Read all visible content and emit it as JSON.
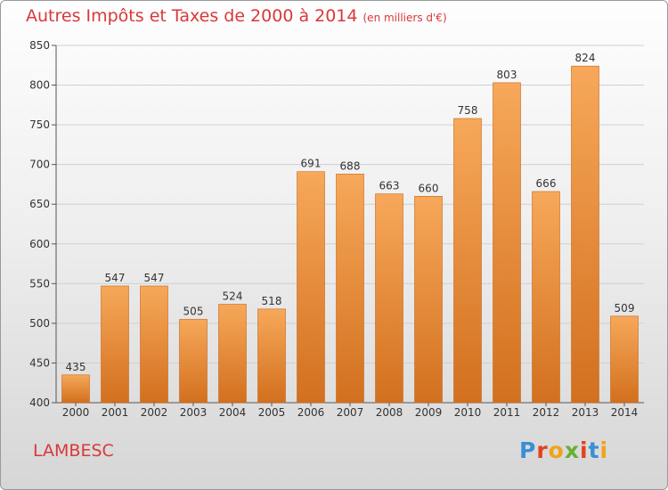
{
  "header": {
    "title": "Autres Impôts et Taxes de 2000 à 2014",
    "unit": "(en milliers d'€)"
  },
  "footer": {
    "city": "LAMBESC",
    "logo": "Proxiti"
  },
  "colors": {
    "accent": "#d9383a",
    "bar_top": "#f7a85a",
    "bar_bottom": "#d2701e"
  },
  "chart_data": {
    "type": "bar",
    "title": "Autres Impôts et Taxes de 2000 à 2014",
    "categories": [
      "2000",
      "2001",
      "2002",
      "2003",
      "2004",
      "2005",
      "2006",
      "2007",
      "2008",
      "2009",
      "2010",
      "2011",
      "2012",
      "2013",
      "2014"
    ],
    "values": [
      435,
      547,
      547,
      505,
      524,
      518,
      691,
      688,
      663,
      660,
      758,
      803,
      666,
      824,
      509
    ],
    "ylim": [
      400,
      850
    ],
    "yticks": [
      400,
      450,
      500,
      550,
      600,
      650,
      700,
      750,
      800,
      850
    ],
    "grid": true
  }
}
